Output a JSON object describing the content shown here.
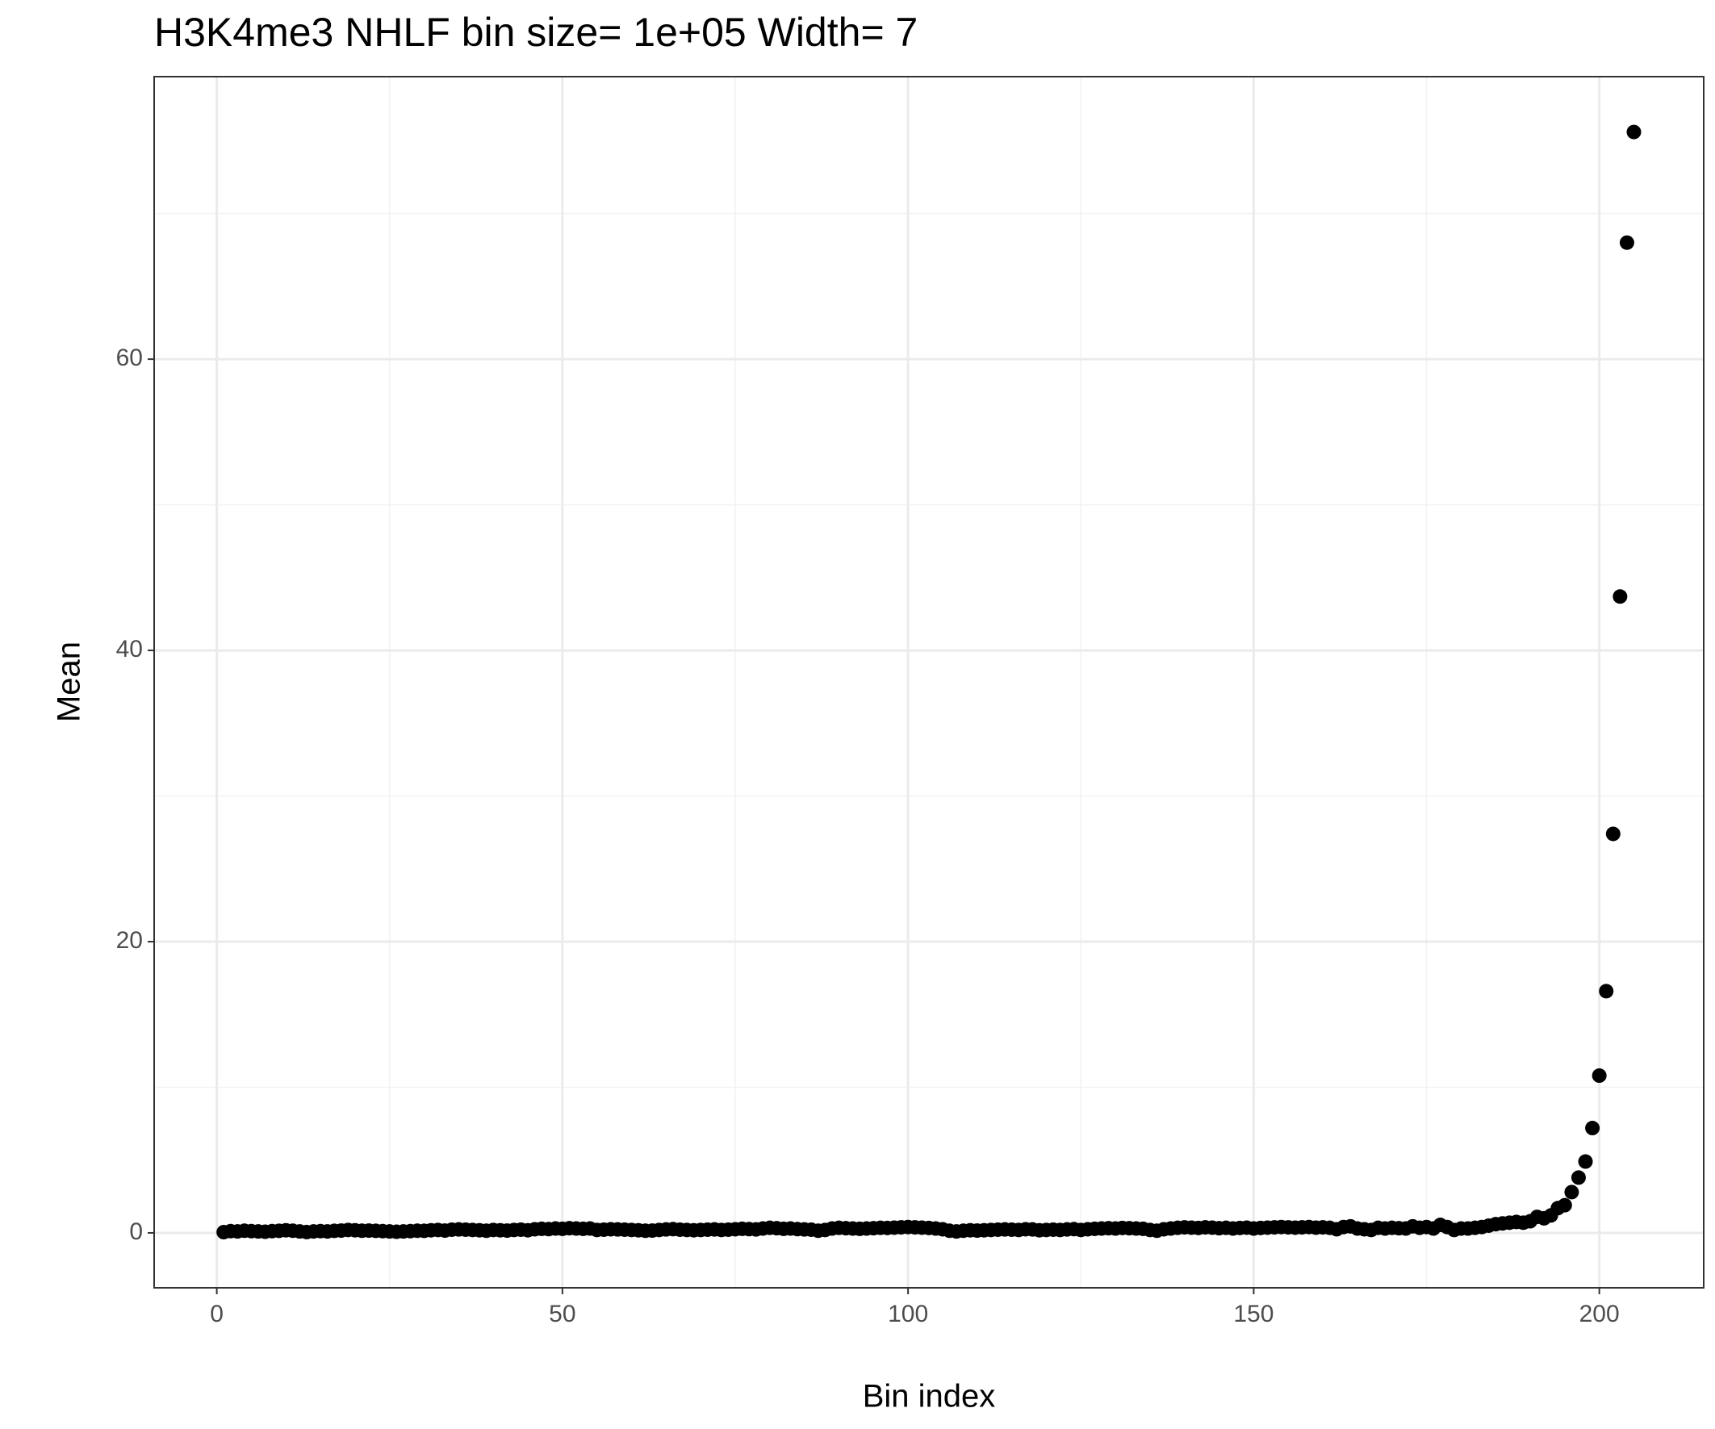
{
  "chart_data": {
    "type": "scatter",
    "title": "H3K4me3 NHLF  bin size=  1e+05  Width=  7",
    "x_label": "Bin index",
    "y_label": "Mean",
    "color": "#000000",
    "grid": true,
    "xlim": [
      -9.06,
      215.1
    ],
    "ylim": [
      -3.77,
      79.4
    ],
    "xticks": [
      0,
      50,
      100,
      150,
      200
    ],
    "yticks": [
      0,
      20,
      40,
      60
    ],
    "x": [
      1,
      2,
      3,
      4,
      5,
      6,
      7,
      8,
      9,
      10,
      11,
      12,
      13,
      14,
      15,
      16,
      17,
      18,
      19,
      20,
      21,
      22,
      23,
      24,
      25,
      26,
      27,
      28,
      29,
      30,
      31,
      32,
      33,
      34,
      35,
      36,
      37,
      38,
      39,
      40,
      41,
      42,
      43,
      44,
      45,
      46,
      47,
      48,
      49,
      50,
      51,
      52,
      53,
      54,
      55,
      56,
      57,
      58,
      59,
      60,
      61,
      62,
      63,
      64,
      65,
      66,
      67,
      68,
      69,
      70,
      71,
      72,
      73,
      74,
      75,
      76,
      77,
      78,
      79,
      80,
      81,
      82,
      83,
      84,
      85,
      86,
      87,
      88,
      89,
      90,
      91,
      92,
      93,
      94,
      95,
      96,
      97,
      98,
      99,
      100,
      101,
      102,
      103,
      104,
      105,
      106,
      107,
      108,
      109,
      110,
      111,
      112,
      113,
      114,
      115,
      116,
      117,
      118,
      119,
      120,
      121,
      122,
      123,
      124,
      125,
      126,
      127,
      128,
      129,
      130,
      131,
      132,
      133,
      134,
      135,
      136,
      137,
      138,
      139,
      140,
      141,
      142,
      143,
      144,
      145,
      146,
      147,
      148,
      149,
      150,
      151,
      152,
      153,
      154,
      155,
      156,
      157,
      158,
      159,
      160,
      161,
      162,
      163,
      164,
      165,
      166,
      167,
      168,
      169,
      170,
      171,
      172,
      173,
      174,
      175,
      176,
      177,
      178,
      179,
      180,
      181,
      182,
      183,
      184,
      185,
      186,
      187,
      188,
      189,
      190,
      191,
      192,
      193,
      194,
      195,
      196,
      197,
      198,
      199,
      200,
      201,
      202,
      203,
      204,
      205
    ],
    "values": [
      0.05,
      0.12,
      0.1,
      0.15,
      0.12,
      0.1,
      0.08,
      0.12,
      0.14,
      0.18,
      0.15,
      0.1,
      0.06,
      0.1,
      0.12,
      0.1,
      0.14,
      0.16,
      0.2,
      0.18,
      0.15,
      0.16,
      0.14,
      0.12,
      0.1,
      0.08,
      0.1,
      0.12,
      0.15,
      0.14,
      0.18,
      0.2,
      0.16,
      0.22,
      0.24,
      0.22,
      0.2,
      0.18,
      0.15,
      0.2,
      0.18,
      0.16,
      0.2,
      0.22,
      0.18,
      0.25,
      0.28,
      0.26,
      0.3,
      0.28,
      0.32,
      0.3,
      0.28,
      0.3,
      0.2,
      0.22,
      0.25,
      0.24,
      0.22,
      0.2,
      0.18,
      0.15,
      0.16,
      0.2,
      0.24,
      0.26,
      0.22,
      0.2,
      0.18,
      0.2,
      0.22,
      0.24,
      0.2,
      0.22,
      0.25,
      0.28,
      0.26,
      0.24,
      0.3,
      0.35,
      0.32,
      0.28,
      0.3,
      0.26,
      0.24,
      0.22,
      0.15,
      0.2,
      0.3,
      0.35,
      0.32,
      0.3,
      0.28,
      0.3,
      0.32,
      0.35,
      0.34,
      0.36,
      0.38,
      0.4,
      0.38,
      0.36,
      0.34,
      0.3,
      0.25,
      0.15,
      0.1,
      0.15,
      0.18,
      0.16,
      0.18,
      0.2,
      0.22,
      0.24,
      0.22,
      0.2,
      0.25,
      0.24,
      0.18,
      0.2,
      0.22,
      0.2,
      0.24,
      0.26,
      0.2,
      0.25,
      0.28,
      0.3,
      0.32,
      0.3,
      0.34,
      0.32,
      0.3,
      0.28,
      0.2,
      0.15,
      0.25,
      0.3,
      0.35,
      0.38,
      0.36,
      0.34,
      0.38,
      0.36,
      0.32,
      0.35,
      0.3,
      0.34,
      0.36,
      0.3,
      0.34,
      0.36,
      0.38,
      0.4,
      0.38,
      0.36,
      0.38,
      0.4,
      0.36,
      0.38,
      0.35,
      0.25,
      0.4,
      0.45,
      0.3,
      0.25,
      0.2,
      0.35,
      0.3,
      0.35,
      0.32,
      0.3,
      0.45,
      0.35,
      0.4,
      0.3,
      0.55,
      0.4,
      0.2,
      0.3,
      0.3,
      0.35,
      0.4,
      0.5,
      0.6,
      0.65,
      0.7,
      0.75,
      0.7,
      0.8,
      1.1,
      1.0,
      1.2,
      1.7,
      1.9,
      2.8,
      3.8,
      4.9,
      7.2,
      10.8,
      16.6,
      27.4,
      43.7,
      68.0,
      75.6
    ]
  }
}
